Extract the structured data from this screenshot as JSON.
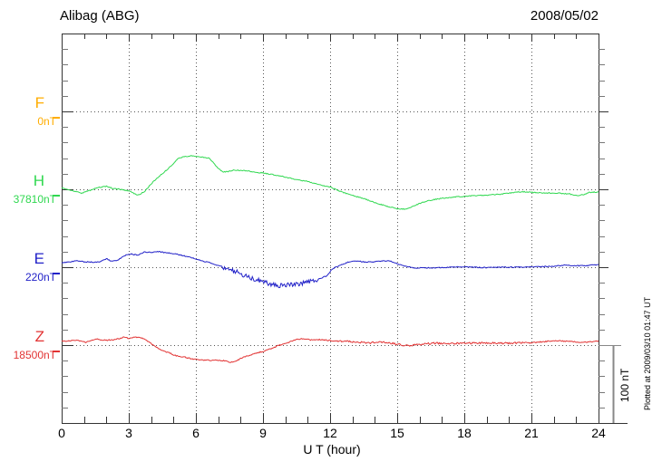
{
  "header": {
    "title": "Alibag (ABG)",
    "date": "2008/05/02"
  },
  "footer": {
    "plotted_at": "Plotted at 2009/03/10 01:47 UT"
  },
  "chart_data": {
    "type": "line",
    "title": "Alibag (ABG)",
    "date": "2008/05/02",
    "xlabel": "U T (hour)",
    "x_range": [
      0,
      24
    ],
    "x_ticks": [
      0,
      3,
      6,
      9,
      12,
      15,
      18,
      21,
      24
    ],
    "x_minor_tick_hours": 1,
    "grid": "dotted vertical lines every 3 hours; dotted horizontal baseline per component",
    "y_division_nT": 100,
    "y_minor_tick_nT": 20,
    "scale_bar": {
      "label": "100 nT",
      "span_nT": 100
    },
    "frame_color": "#333333",
    "grid_color": "#555555",
    "series": [
      {
        "name": "F",
        "color": "#FFAD00",
        "base_label": "0nT",
        "noise": 0,
        "noise_segments": [],
        "points": []
      },
      {
        "name": "H",
        "color": "#30D850",
        "base_label": "37810nT",
        "noise": 0.5,
        "noise_segments": [],
        "points": [
          [
            0,
            1.5
          ],
          [
            0.4,
            -1
          ],
          [
            0.9,
            -5
          ],
          [
            1.3,
            -1
          ],
          [
            1.6,
            2
          ],
          [
            2,
            4
          ],
          [
            2.3,
            1
          ],
          [
            2.6,
            0
          ],
          [
            3,
            -2
          ],
          [
            3.4,
            -7.5
          ],
          [
            3.7,
            -3
          ],
          [
            4.1,
            10
          ],
          [
            4.5,
            20
          ],
          [
            4.9,
            30
          ],
          [
            5.2,
            40
          ],
          [
            5.5,
            42
          ],
          [
            5.8,
            43
          ],
          [
            6.1,
            42
          ],
          [
            6.4,
            41
          ],
          [
            6.6,
            40
          ],
          [
            6.9,
            30
          ],
          [
            7.2,
            22
          ],
          [
            7.5,
            23
          ],
          [
            7.7,
            25
          ],
          [
            8,
            24
          ],
          [
            8.3,
            24
          ],
          [
            8.6,
            22
          ],
          [
            9,
            21
          ],
          [
            9.4,
            19
          ],
          [
            9.8,
            17
          ],
          [
            10.4,
            13
          ],
          [
            11,
            10
          ],
          [
            11.5,
            6
          ],
          [
            12,
            3
          ],
          [
            12.4,
            -2
          ],
          [
            12.9,
            -7
          ],
          [
            13.5,
            -12
          ],
          [
            14.1,
            -18
          ],
          [
            14.6,
            -22
          ],
          [
            15,
            -25
          ],
          [
            15.4,
            -25.5
          ],
          [
            15.7,
            -22
          ],
          [
            16.1,
            -17
          ],
          [
            16.5,
            -14
          ],
          [
            17,
            -11.5
          ],
          [
            17.5,
            -10
          ],
          [
            18.2,
            -8.5
          ],
          [
            19,
            -7.5
          ],
          [
            19.7,
            -6
          ],
          [
            20.3,
            -4
          ],
          [
            20.6,
            -3
          ],
          [
            21,
            -4
          ],
          [
            21.6,
            -4.5
          ],
          [
            22.2,
            -5
          ],
          [
            22.7,
            -6
          ],
          [
            23.1,
            -8.5
          ],
          [
            23.4,
            -6
          ],
          [
            23.6,
            -4
          ],
          [
            24,
            -3.5
          ]
        ]
      },
      {
        "name": "E",
        "color": "#2121C8",
        "base_label": "220nT",
        "noise": 0.5,
        "noise_segments": [
          [
            7.2,
            11.5,
            2.6
          ]
        ],
        "points": [
          [
            0,
            5.5
          ],
          [
            0.4,
            7
          ],
          [
            0.7,
            8.5
          ],
          [
            1,
            7
          ],
          [
            1.4,
            6.5
          ],
          [
            1.7,
            7
          ],
          [
            2,
            11
          ],
          [
            2.2,
            8
          ],
          [
            2.5,
            9
          ],
          [
            2.9,
            16
          ],
          [
            3.1,
            17
          ],
          [
            3.4,
            15.5
          ],
          [
            3.7,
            19.5
          ],
          [
            4,
            19
          ],
          [
            4.3,
            20
          ],
          [
            4.7,
            18.5
          ],
          [
            5,
            17.5
          ],
          [
            5.4,
            15
          ],
          [
            5.8,
            12.5
          ],
          [
            6,
            10.5
          ],
          [
            6.3,
            8
          ],
          [
            6.6,
            6
          ],
          [
            6.9,
            3
          ],
          [
            7.2,
            0.5
          ],
          [
            7.5,
            -3
          ],
          [
            7.8,
            -6
          ],
          [
            8.1,
            -9.5
          ],
          [
            8.4,
            -13
          ],
          [
            8.7,
            -16
          ],
          [
            9,
            -19
          ],
          [
            9.3,
            -21.5
          ],
          [
            9.6,
            -24
          ],
          [
            10,
            -23
          ],
          [
            10.3,
            -22.5
          ],
          [
            10.7,
            -20.5
          ],
          [
            11,
            -19
          ],
          [
            11.3,
            -17.5
          ],
          [
            11.6,
            -14
          ],
          [
            11.85,
            -11
          ],
          [
            12.05,
            -4
          ],
          [
            12.3,
            1
          ],
          [
            12.5,
            3
          ],
          [
            12.8,
            6.5
          ],
          [
            13.2,
            8
          ],
          [
            13.5,
            7
          ],
          [
            13.8,
            6.5
          ],
          [
            14.2,
            7.5
          ],
          [
            14.65,
            8.5
          ],
          [
            15,
            4.5
          ],
          [
            15.3,
            1.5
          ],
          [
            15.8,
            -1
          ],
          [
            16.3,
            -0.8
          ],
          [
            17,
            -0.5
          ],
          [
            17.7,
            0.5
          ],
          [
            18.4,
            0
          ],
          [
            19,
            -0.5
          ],
          [
            19.6,
            0
          ],
          [
            20.3,
            0
          ],
          [
            21,
            0.5
          ],
          [
            21.8,
            1
          ],
          [
            22.5,
            2.5
          ],
          [
            23,
            2
          ],
          [
            23.5,
            2
          ],
          [
            24,
            3.5
          ]
        ]
      },
      {
        "name": "Z",
        "color": "#E23333",
        "base_label": "18500nT",
        "noise": 0.6,
        "noise_segments": [
          [
            12.2,
            21,
            1.0
          ]
        ],
        "points": [
          [
            0,
            4.5
          ],
          [
            0.3,
            5.5
          ],
          [
            0.6,
            6.5
          ],
          [
            0.9,
            4.5
          ],
          [
            1.1,
            3.5
          ],
          [
            1.5,
            8
          ],
          [
            1.8,
            6
          ],
          [
            2.1,
            6.5
          ],
          [
            2.4,
            7
          ],
          [
            2.8,
            10.5
          ],
          [
            3,
            8.5
          ],
          [
            3.3,
            10.5
          ],
          [
            3.6,
            9
          ],
          [
            3.9,
            4
          ],
          [
            4.1,
            0
          ],
          [
            4.4,
            -6
          ],
          [
            4.8,
            -10
          ],
          [
            5.1,
            -13.5
          ],
          [
            5.5,
            -15.5
          ],
          [
            5.8,
            -17.5
          ],
          [
            6.2,
            -19
          ],
          [
            6.6,
            -19.5
          ],
          [
            7,
            -19.5
          ],
          [
            7.3,
            -20
          ],
          [
            7.5,
            -22.5
          ],
          [
            7.8,
            -20
          ],
          [
            8.1,
            -16
          ],
          [
            8.5,
            -12
          ],
          [
            9,
            -8
          ],
          [
            9.4,
            -4
          ],
          [
            9.7,
            -0.5
          ],
          [
            10.1,
            3
          ],
          [
            10.5,
            7.5
          ],
          [
            10.8,
            8
          ],
          [
            11.2,
            6.5
          ],
          [
            11.6,
            7
          ],
          [
            12,
            6
          ],
          [
            12.4,
            5
          ],
          [
            12.8,
            5
          ],
          [
            13.4,
            3.5
          ],
          [
            13.8,
            3
          ],
          [
            14.3,
            4
          ],
          [
            14.7,
            2.5
          ],
          [
            15,
            1
          ],
          [
            15.4,
            -0.5
          ],
          [
            15.8,
            0
          ],
          [
            16.2,
            1.5
          ],
          [
            16.8,
            2.5
          ],
          [
            17.5,
            2
          ],
          [
            18.2,
            2.5
          ],
          [
            19,
            3
          ],
          [
            19.8,
            2.5
          ],
          [
            20.5,
            3
          ],
          [
            21.2,
            3.5
          ],
          [
            21.8,
            5
          ],
          [
            22.3,
            5.5
          ],
          [
            22.8,
            4.5
          ],
          [
            23.3,
            3.5
          ],
          [
            23.7,
            4.5
          ],
          [
            24,
            5
          ]
        ]
      }
    ]
  }
}
